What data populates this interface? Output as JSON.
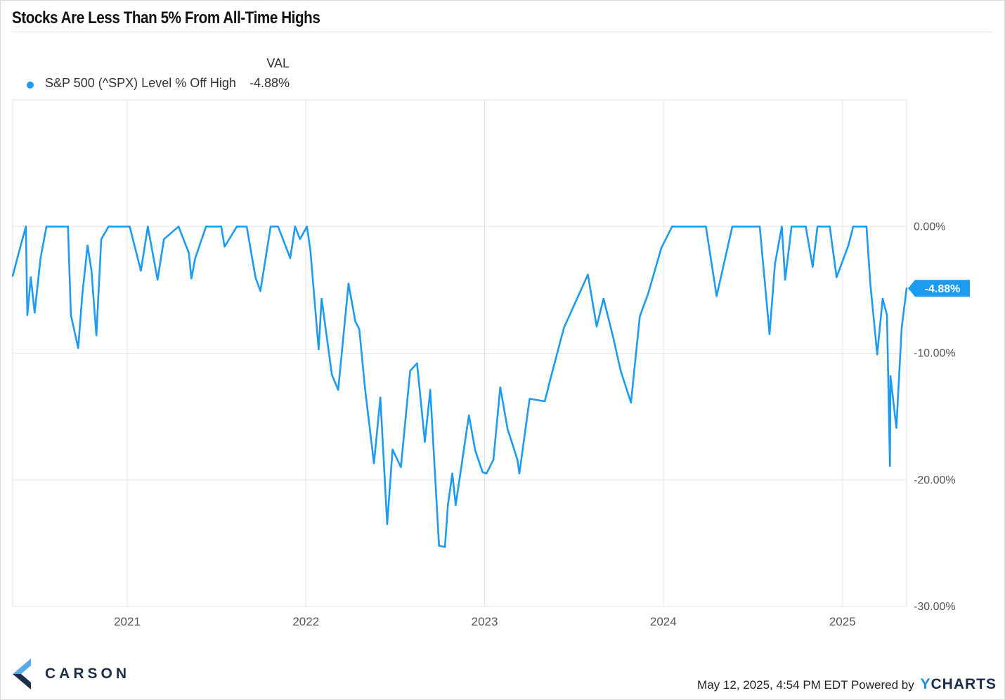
{
  "title": "Stocks Are Less Than 5% From All-Time Highs",
  "legend": {
    "header": "VAL",
    "series_name": "S&P 500 (^SPX) Level % Off High",
    "series_value": "-4.88%"
  },
  "colors": {
    "series": "#1d9bf0",
    "grid": "#e6e6e6",
    "axis_text": "#555555",
    "brand_navy": "#1c2f4a",
    "brand_blue": "#1f8fe0"
  },
  "chart_data": {
    "type": "line",
    "title": "Stocks Are Less Than 5% From All-Time Highs",
    "xlabel": "",
    "ylabel": "",
    "ylim": [
      -30,
      10
    ],
    "yticks": [
      0,
      -10,
      -20,
      -30
    ],
    "ytick_labels": [
      "0.00%",
      "-10.00%",
      "-20.00%",
      "-30.00%"
    ],
    "xticks": [
      "2021",
      "2022",
      "2023",
      "2024",
      "2025"
    ],
    "xlim": [
      "2020-05-12",
      "2025-05-12"
    ],
    "grid": true,
    "legend": "top-left",
    "last_value_label": "-4.88%",
    "series": [
      {
        "name": "S&P 500 (^SPX) Level % Off High",
        "x": [
          "2020-05-12",
          "2020-06-01",
          "2020-06-08",
          "2020-06-11",
          "2020-06-18",
          "2020-06-26",
          "2020-07-08",
          "2020-07-20",
          "2020-08-12",
          "2020-08-20",
          "2020-09-02",
          "2020-09-08",
          "2020-09-23",
          "2020-10-01",
          "2020-10-12",
          "2020-10-20",
          "2020-10-30",
          "2020-11-09",
          "2020-11-24",
          "2020-12-15",
          "2021-01-06",
          "2021-01-29",
          "2021-02-12",
          "2021-03-04",
          "2021-03-17",
          "2021-04-16",
          "2021-05-07",
          "2021-05-12",
          "2021-05-20",
          "2021-06-11",
          "2021-07-12",
          "2021-07-19",
          "2021-08-13",
          "2021-09-02",
          "2021-09-20",
          "2021-09-30",
          "2021-10-21",
          "2021-11-05",
          "2021-11-30",
          "2021-12-10",
          "2021-12-20",
          "2022-01-03",
          "2022-01-10",
          "2022-01-27",
          "2022-02-02",
          "2022-02-23",
          "2022-03-08",
          "2022-03-29",
          "2022-04-12",
          "2022-04-20",
          "2022-05-02",
          "2022-05-20",
          "2022-06-02",
          "2022-06-16",
          "2022-06-27",
          "2022-07-14",
          "2022-08-02",
          "2022-08-16",
          "2022-09-01",
          "2022-09-12",
          "2022-09-30",
          "2022-10-12",
          "2022-10-18",
          "2022-10-27",
          "2022-11-03",
          "2022-11-30",
          "2022-12-13",
          "2022-12-28",
          "2023-01-05",
          "2023-01-19",
          "2023-02-02",
          "2023-02-17",
          "2023-03-09",
          "2023-03-13",
          "2023-04-03",
          "2023-05-04",
          "2023-05-19",
          "2023-06-12",
          "2023-07-31",
          "2023-08-18",
          "2023-09-01",
          "2023-09-21",
          "2023-10-06",
          "2023-10-27",
          "2023-11-14",
          "2023-12-01",
          "2023-12-28",
          "2024-01-19",
          "2024-02-09",
          "2024-03-28",
          "2024-04-19",
          "2024-05-21",
          "2024-06-14",
          "2024-07-16",
          "2024-08-05",
          "2024-08-16",
          "2024-08-30",
          "2024-09-06",
          "2024-09-19",
          "2024-10-18",
          "2024-11-01",
          "2024-11-11",
          "2024-12-06",
          "2024-12-20",
          "2025-01-13",
          "2025-01-23",
          "2025-02-19",
          "2025-02-27",
          "2025-03-13",
          "2025-03-24",
          "2025-04-02",
          "2025-04-08",
          "2025-04-09",
          "2025-04-21",
          "2025-05-02",
          "2025-05-12"
        ],
        "values": [
          -3.9,
          -1.0,
          0.0,
          -7.0,
          -4.0,
          -6.8,
          -2.5,
          0.0,
          0.0,
          0.0,
          0.0,
          -7.0,
          -9.6,
          -5.5,
          -1.5,
          -3.5,
          -8.6,
          -1.0,
          0.0,
          0.0,
          0.0,
          -3.5,
          0.0,
          -4.2,
          -1.0,
          0.0,
          -2.1,
          -4.1,
          -2.5,
          0.0,
          0.0,
          -1.6,
          0.0,
          0.0,
          -4.0,
          -5.1,
          0.0,
          0.0,
          -2.5,
          0.0,
          -1.0,
          0.0,
          -1.8,
          -9.7,
          -5.7,
          -11.7,
          -12.9,
          -4.5,
          -7.5,
          -8.1,
          -12.9,
          -18.7,
          -13.5,
          -23.5,
          -17.6,
          -19.0,
          -11.4,
          -10.8,
          -17.0,
          -12.9,
          -25.2,
          -25.3,
          -22.0,
          -19.5,
          -22.0,
          -14.9,
          -17.7,
          -19.4,
          -19.5,
          -18.4,
          -12.7,
          -16.0,
          -18.4,
          -19.5,
          -13.6,
          -13.8,
          -11.5,
          -8.0,
          -3.8,
          -7.9,
          -5.7,
          -8.8,
          -11.4,
          -13.9,
          -7.1,
          -5.3,
          -1.7,
          0.0,
          0.0,
          0.0,
          -5.5,
          0.0,
          0.0,
          0.0,
          -8.5,
          -3.0,
          0.0,
          -4.2,
          0.0,
          0.0,
          -3.2,
          0.0,
          0.0,
          -4.0,
          -1.5,
          0.0,
          0.0,
          -4.6,
          -10.1,
          -5.7,
          -7.0,
          -18.9,
          -11.8,
          -15.9,
          -8.0,
          -4.88
        ]
      }
    ]
  },
  "footer": {
    "timestamp": "May 12, 2025, 4:54 PM EDT",
    "powered_by": "Powered by",
    "brand_first": "Y",
    "brand_rest": "CHARTS"
  },
  "logo": {
    "text": "CARSON"
  }
}
